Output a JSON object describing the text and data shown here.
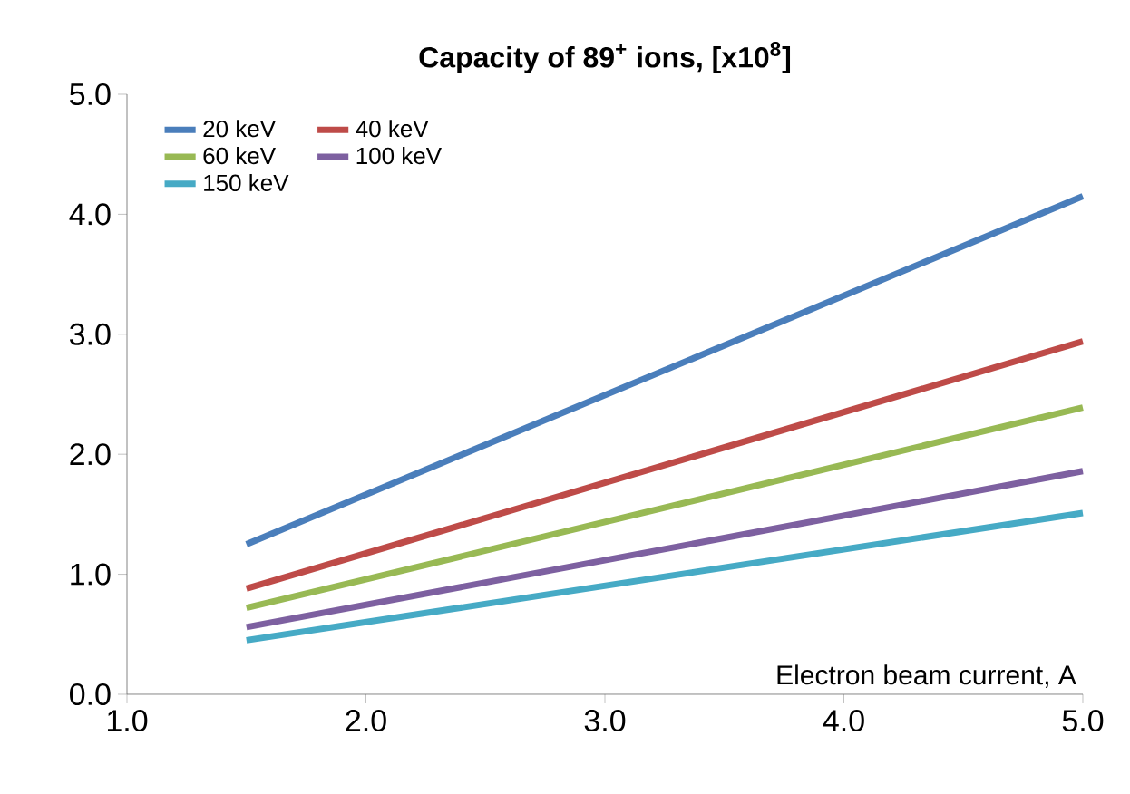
{
  "chart_data": {
    "type": "line",
    "title": "Capacity of 89$^{+}$ ions, [x10$^{8}$]",
    "xlabel": "Electron beam current, A",
    "x": [
      1.5,
      5.0
    ],
    "series": [
      {
        "name": "20 keV",
        "color": "#4a7ebb",
        "values": [
          1.25,
          4.15
        ]
      },
      {
        "name": "40 keV",
        "color": "#be4b48",
        "values": [
          0.88,
          2.94
        ]
      },
      {
        "name": "60 keV",
        "color": "#98b954",
        "values": [
          0.72,
          2.39
        ]
      },
      {
        "name": "100 keV",
        "color": "#7d60a0",
        "values": [
          0.56,
          1.86
        ]
      },
      {
        "name": "150 keV",
        "color": "#46aac5",
        "values": [
          0.45,
          1.51
        ]
      }
    ],
    "xlim": [
      1.0,
      5.0
    ],
    "xticks": [
      {
        "value": 1.0,
        "label": "1.0"
      },
      {
        "value": 2.0,
        "label": "2.0"
      },
      {
        "value": 3.0,
        "label": "3.0"
      },
      {
        "value": 4.0,
        "label": "4.0"
      },
      {
        "value": 5.0,
        "label": "5.0"
      }
    ],
    "ylim": [
      0.0,
      5.0
    ],
    "yticks": [
      {
        "value": 0.0,
        "label": "0.0"
      },
      {
        "value": 1.0,
        "label": "1.0"
      },
      {
        "value": 2.0,
        "label": "2.0"
      },
      {
        "value": 3.0,
        "label": "3.0"
      },
      {
        "value": 4.0,
        "label": "4.0"
      },
      {
        "value": 5.0,
        "label": "5.0"
      }
    ],
    "legend": "top left",
    "marker": "none",
    "line_style": "solid",
    "grid": false
  }
}
